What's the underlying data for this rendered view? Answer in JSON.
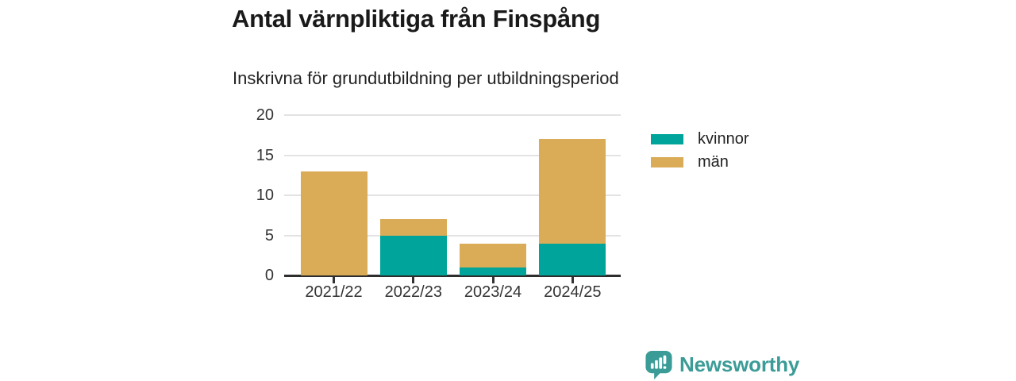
{
  "header": {
    "title": "Antal värnpliktiga från Finspång",
    "subtitle": "Inskrivna för grundutbildning per utbildningsperiod"
  },
  "chart_data": {
    "type": "bar",
    "stacked": true,
    "title": "Antal värnpliktiga från Finspång",
    "subtitle": "Inskrivna för grundutbildning per utbildningsperiod",
    "categories": [
      "2021/22",
      "2022/23",
      "2023/24",
      "2024/25"
    ],
    "series": [
      {
        "name": "kvinnor",
        "color": "#00a49a",
        "values": [
          0,
          5,
          1,
          4
        ]
      },
      {
        "name": "män",
        "color": "#daac57",
        "values": [
          13,
          2,
          3,
          13
        ]
      }
    ],
    "totals": [
      13,
      7,
      4,
      17
    ],
    "ylim": [
      0,
      20
    ],
    "yticks": [
      0,
      5,
      10,
      15,
      20
    ],
    "grid": true,
    "legend_position": "right",
    "colors": {
      "grid": "#e3e3e3",
      "axis_line": "#2d2d2d",
      "tick_label": "#333333"
    }
  },
  "footer": {
    "brand": "Newsworthy",
    "brand_color": "#3b9c97",
    "logo_icon": "speech-bubble-bar-chart-icon"
  }
}
